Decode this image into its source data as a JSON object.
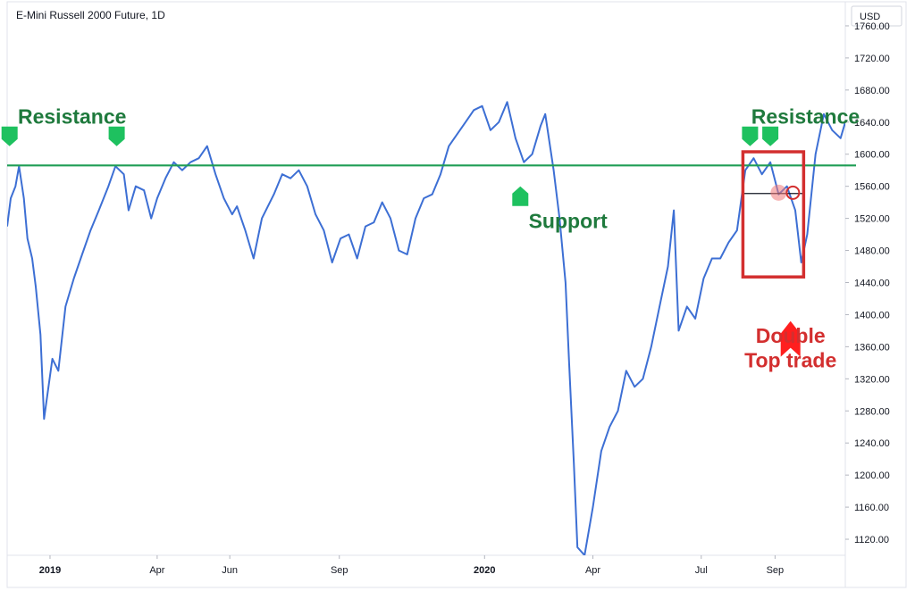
{
  "chart_data": {
    "type": "line",
    "title": "E-Mini Russell 2000 Future, 1D",
    "currency": "USD",
    "ylim": [
      1100,
      1790
    ],
    "y_ticks": [
      1760,
      1720,
      1680,
      1640,
      1600,
      1560,
      1520,
      1480,
      1440,
      1400,
      1360,
      1320,
      1280,
      1240,
      1200,
      1160,
      1120
    ],
    "y_tick_labels": [
      "1760.00",
      "1720.00",
      "1680.00",
      "1640.00",
      "1600.00",
      "1560.00",
      "1520.00",
      "1480.00",
      "1440.00",
      "1400.00",
      "1360.00",
      "1320.00",
      "1280.00",
      "1240.00",
      "1200.00",
      "1160.00",
      "1120.00"
    ],
    "xlim": [
      "2018-11-26",
      "2020-10-30"
    ],
    "x_ticks": [
      {
        "label": "2019",
        "date": "2019-01-01",
        "bold": true
      },
      {
        "label": "Apr",
        "date": "2019-04-01",
        "bold": false
      },
      {
        "label": "Jun",
        "date": "2019-06-01",
        "bold": false
      },
      {
        "label": "Sep",
        "date": "2019-09-01",
        "bold": false
      },
      {
        "label": "2020",
        "date": "2020-01-01",
        "bold": true
      },
      {
        "label": "Apr",
        "date": "2020-04-01",
        "bold": false
      },
      {
        "label": "Jul",
        "date": "2020-07-01",
        "bold": false
      },
      {
        "label": "Sep",
        "date": "2020-09-01",
        "bold": false
      }
    ],
    "grid": false,
    "series": [
      {
        "name": "",
        "color": "#3d6fd4",
        "points": [
          [
            "2018-11-26",
            1510
          ],
          [
            "2018-11-29",
            1545
          ],
          [
            "2018-12-03",
            1560
          ],
          [
            "2018-12-06",
            1585
          ],
          [
            "2018-12-10",
            1545
          ],
          [
            "2018-12-13",
            1495
          ],
          [
            "2018-12-17",
            1470
          ],
          [
            "2018-12-20",
            1435
          ],
          [
            "2018-12-24",
            1375
          ],
          [
            "2018-12-27",
            1270
          ],
          [
            "2019-01-03",
            1345
          ],
          [
            "2019-01-08",
            1330
          ],
          [
            "2019-01-14",
            1410
          ],
          [
            "2019-01-21",
            1445
          ],
          [
            "2019-01-28",
            1475
          ],
          [
            "2019-02-04",
            1505
          ],
          [
            "2019-02-11",
            1530
          ],
          [
            "2019-02-19",
            1560
          ],
          [
            "2019-02-25",
            1585
          ],
          [
            "2019-03-04",
            1575
          ],
          [
            "2019-03-08",
            1530
          ],
          [
            "2019-03-14",
            1560
          ],
          [
            "2019-03-21",
            1555
          ],
          [
            "2019-03-27",
            1520
          ],
          [
            "2019-04-01",
            1545
          ],
          [
            "2019-04-08",
            1570
          ],
          [
            "2019-04-15",
            1590
          ],
          [
            "2019-04-22",
            1580
          ],
          [
            "2019-04-29",
            1590
          ],
          [
            "2019-05-06",
            1595
          ],
          [
            "2019-05-13",
            1610
          ],
          [
            "2019-05-20",
            1575
          ],
          [
            "2019-05-27",
            1545
          ],
          [
            "2019-06-03",
            1525
          ],
          [
            "2019-06-07",
            1535
          ],
          [
            "2019-06-14",
            1505
          ],
          [
            "2019-06-21",
            1470
          ],
          [
            "2019-06-28",
            1520
          ],
          [
            "2019-07-08",
            1550
          ],
          [
            "2019-07-15",
            1575
          ],
          [
            "2019-07-22",
            1570
          ],
          [
            "2019-07-29",
            1580
          ],
          [
            "2019-08-05",
            1560
          ],
          [
            "2019-08-12",
            1525
          ],
          [
            "2019-08-19",
            1505
          ],
          [
            "2019-08-26",
            1465
          ],
          [
            "2019-09-02",
            1495
          ],
          [
            "2019-09-09",
            1500
          ],
          [
            "2019-09-16",
            1470
          ],
          [
            "2019-09-23",
            1510
          ],
          [
            "2019-09-30",
            1515
          ],
          [
            "2019-10-07",
            1540
          ],
          [
            "2019-10-14",
            1520
          ],
          [
            "2019-10-21",
            1480
          ],
          [
            "2019-10-28",
            1475
          ],
          [
            "2019-11-04",
            1520
          ],
          [
            "2019-11-11",
            1545
          ],
          [
            "2019-11-18",
            1550
          ],
          [
            "2019-11-25",
            1575
          ],
          [
            "2019-12-02",
            1610
          ],
          [
            "2019-12-09",
            1625
          ],
          [
            "2019-12-16",
            1640
          ],
          [
            "2019-12-23",
            1655
          ],
          [
            "2019-12-30",
            1660
          ],
          [
            "2020-01-06",
            1630
          ],
          [
            "2020-01-13",
            1640
          ],
          [
            "2020-01-20",
            1665
          ],
          [
            "2020-01-27",
            1620
          ],
          [
            "2020-02-03",
            1590
          ],
          [
            "2020-02-10",
            1600
          ],
          [
            "2020-02-17",
            1635
          ],
          [
            "2020-02-21",
            1650
          ],
          [
            "2020-02-28",
            1580
          ],
          [
            "2020-03-04",
            1520
          ],
          [
            "2020-03-09",
            1440
          ],
          [
            "2020-03-12",
            1340
          ],
          [
            "2020-03-16",
            1215
          ],
          [
            "2020-03-19",
            1110
          ],
          [
            "2020-03-25",
            1100
          ],
          [
            "2020-04-01",
            1160
          ],
          [
            "2020-04-08",
            1230
          ],
          [
            "2020-04-15",
            1260
          ],
          [
            "2020-04-22",
            1280
          ],
          [
            "2020-04-29",
            1330
          ],
          [
            "2020-05-06",
            1310
          ],
          [
            "2020-05-13",
            1320
          ],
          [
            "2020-05-20",
            1360
          ],
          [
            "2020-05-27",
            1410
          ],
          [
            "2020-06-03",
            1460
          ],
          [
            "2020-06-08",
            1530
          ],
          [
            "2020-06-12",
            1380
          ],
          [
            "2020-06-19",
            1410
          ],
          [
            "2020-06-26",
            1395
          ],
          [
            "2020-07-03",
            1445
          ],
          [
            "2020-07-10",
            1470
          ],
          [
            "2020-07-17",
            1470
          ],
          [
            "2020-07-24",
            1490
          ],
          [
            "2020-07-31",
            1505
          ],
          [
            "2020-08-07",
            1580
          ],
          [
            "2020-08-14",
            1595
          ],
          [
            "2020-08-21",
            1575
          ],
          [
            "2020-08-28",
            1590
          ],
          [
            "2020-09-04",
            1550
          ],
          [
            "2020-09-11",
            1560
          ],
          [
            "2020-09-18",
            1530
          ],
          [
            "2020-09-23",
            1465
          ],
          [
            "2020-09-28",
            1500
          ],
          [
            "2020-10-05",
            1600
          ],
          [
            "2020-10-12",
            1650
          ],
          [
            "2020-10-19",
            1630
          ],
          [
            "2020-10-26",
            1620
          ],
          [
            "2020-10-30",
            1640
          ]
        ]
      }
    ],
    "levels": {
      "resistance_level": 1586,
      "neckline_level": 1551,
      "resistance_color": "#1f9d55",
      "neckline_color": "#131722"
    },
    "double_top_box": {
      "date_start": "2020-08-05",
      "date_end": "2020-09-25",
      "price_top": 1603,
      "price_bottom": 1447,
      "color": "#d32f2f"
    },
    "marker_circle": {
      "date": "2020-09-16",
      "price": 1552,
      "color": "#d32f2f"
    },
    "annotations": [
      {
        "id": "resistance-left",
        "text": "Resistance",
        "date": "2018-12-05",
        "price": 1638,
        "color": "#1f7a3d"
      },
      {
        "id": "resistance-right",
        "text": "Resistance",
        "date": "2020-08-12",
        "price": 1638,
        "color": "#1f7a3d"
      },
      {
        "id": "support",
        "text": "Support",
        "date": "2020-02-07",
        "price": 1508,
        "color": "#1f7a3d"
      },
      {
        "id": "double-top-1",
        "text": "Double",
        "date": "2020-09-14",
        "price": 1365,
        "color": "#d32f2f"
      },
      {
        "id": "double-top-2",
        "text": "Top trade",
        "date": "2020-09-14",
        "price": 1334,
        "color": "#d32f2f"
      }
    ],
    "arrows": [
      {
        "id": "arrow-res-1",
        "direction": "down",
        "date": "2018-11-28",
        "price": 1610,
        "color": "#1ec15f"
      },
      {
        "id": "arrow-res-2",
        "direction": "down",
        "date": "2019-02-26",
        "price": 1610,
        "color": "#1ec15f"
      },
      {
        "id": "arrow-support",
        "direction": "up",
        "date": "2020-01-31",
        "price": 1560,
        "color": "#1ec15f"
      },
      {
        "id": "arrow-res-3",
        "direction": "down",
        "date": "2020-08-11",
        "price": 1610,
        "color": "#1ec15f"
      },
      {
        "id": "arrow-res-4",
        "direction": "down",
        "date": "2020-08-28",
        "price": 1610,
        "color": "#1ec15f"
      },
      {
        "id": "arrow-double-top",
        "direction": "up",
        "date": "2020-09-14",
        "price": 1392,
        "color": "#ff1f1f"
      }
    ]
  }
}
